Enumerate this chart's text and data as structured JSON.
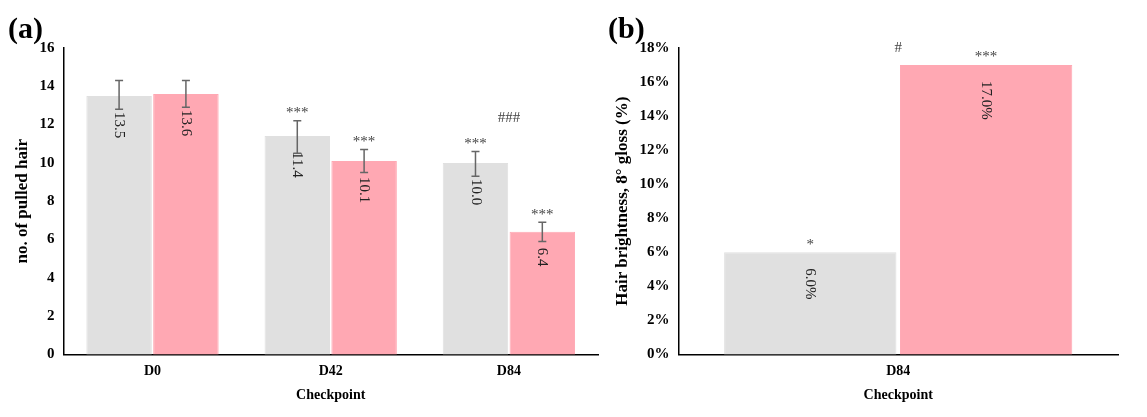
{
  "chart_data": [
    {
      "type": "bar",
      "title": "(a)",
      "xlabel": "Checkpoint",
      "ylabel": "no. of pulled hair",
      "categories": [
        "D0",
        "D42",
        "D84"
      ],
      "series": [
        {
          "color": "#e0e0e0",
          "values": [
            13.5,
            11.4,
            10.0
          ],
          "errors": [
            [
              12.8,
              14.3
            ],
            [
              10.5,
              12.2
            ],
            [
              9.3,
              10.6
            ]
          ],
          "value_labels": [
            "13.5",
            "11.4",
            "10.0"
          ]
        },
        {
          "color": "#ffa8b3",
          "values": [
            13.6,
            10.1,
            6.4
          ],
          "errors": [
            [
              12.9,
              14.3
            ],
            [
              9.5,
              10.7
            ],
            [
              5.9,
              6.9
            ]
          ],
          "value_labels": [
            "13.6",
            "10.1",
            "6.4"
          ]
        }
      ],
      "ylim": [
        0,
        16
      ],
      "yticks": [
        0,
        2,
        4,
        6,
        8,
        10,
        12,
        14,
        16
      ],
      "grid": false,
      "legend": false,
      "annotations": [
        "***",
        "***",
        "***",
        "***",
        "###"
      ]
    },
    {
      "type": "bar",
      "title": "(b)",
      "xlabel": "Checkpoint",
      "ylabel": "Hair brightness, 8° gloss (%)",
      "categories": [
        "D84"
      ],
      "series": [
        {
          "color": "#e0e0e0",
          "values": [
            6.0
          ],
          "value_labels": [
            "6.0%"
          ]
        },
        {
          "color": "#ffa8b3",
          "values": [
            17.0
          ],
          "value_labels": [
            "17.0%"
          ]
        }
      ],
      "ylim": [
        0,
        18
      ],
      "yticks": [
        {
          "value": 0,
          "label": "0%"
        },
        {
          "value": 2,
          "label": "2%"
        },
        {
          "value": 4,
          "label": "4%"
        },
        {
          "value": 6,
          "label": "6%"
        },
        {
          "value": 8,
          "label": "8%"
        },
        {
          "value": 10,
          "label": "10%"
        },
        {
          "value": 12,
          "label": "12%"
        },
        {
          "value": 14,
          "label": "14%"
        },
        {
          "value": 16,
          "label": "16%"
        },
        {
          "value": 18,
          "label": "18%"
        }
      ],
      "grid": false,
      "legend": false,
      "annotations": [
        "*",
        "***",
        "#"
      ]
    }
  ]
}
